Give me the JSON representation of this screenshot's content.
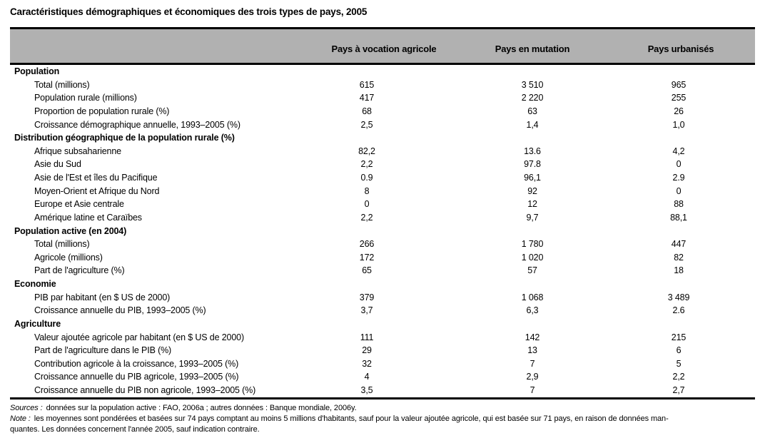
{
  "title": "Caractéristiques démographiques et économiques des trois types de pays, 2005",
  "colors": {
    "header_band": "#b1b1b1",
    "rule": "#000000"
  },
  "table": {
    "columns": [
      "Pays à vocation agricole",
      "Pays en mutation",
      "Pays urbanisés"
    ],
    "rows": [
      {
        "type": "section",
        "label": "Population"
      },
      {
        "type": "data",
        "label": "Total (millions)",
        "values": [
          "615",
          "3 510",
          "965"
        ]
      },
      {
        "type": "data",
        "label": "Population rurale (millions)",
        "values": [
          "417",
          "2 220",
          "255"
        ]
      },
      {
        "type": "data",
        "label": "Proportion de population rurale (%)",
        "values": [
          "68",
          "63",
          "26"
        ]
      },
      {
        "type": "data",
        "label": "Croissance démographique annuelle, 1993–2005 (%)",
        "values": [
          "2,5",
          "1,4",
          "1,0"
        ]
      },
      {
        "type": "section",
        "label": "Distribution géographique de la population rurale (%)"
      },
      {
        "type": "data",
        "label": "Afrique subsaharienne",
        "values": [
          "82,2",
          "13.6",
          "4,2"
        ]
      },
      {
        "type": "data",
        "label": "Asie du Sud",
        "values": [
          "2,2",
          "97.8",
          "0"
        ]
      },
      {
        "type": "data",
        "label": "Asie de l'Est et îles du Pacifique",
        "values": [
          "0.9",
          "96,1",
          "2.9"
        ]
      },
      {
        "type": "data",
        "label": "Moyen-Orient et Afrique du Nord",
        "values": [
          "8",
          "92",
          "0"
        ]
      },
      {
        "type": "data",
        "label": "Europe et Asie centrale",
        "values": [
          "0",
          "12",
          "88"
        ]
      },
      {
        "type": "data",
        "label": "Amérique latine et Caraïbes",
        "values": [
          "2,2",
          "9,7",
          "88,1"
        ]
      },
      {
        "type": "section",
        "label": "Population active (en 2004)"
      },
      {
        "type": "data",
        "label": "Total (millions)",
        "values": [
          "266",
          "1 780",
          "447"
        ]
      },
      {
        "type": "data",
        "label": "Agricole (millions)",
        "values": [
          "172",
          "1 020",
          "82"
        ]
      },
      {
        "type": "data",
        "label": "Part de l'agriculture (%)",
        "values": [
          "65",
          "57",
          "18"
        ]
      },
      {
        "type": "section",
        "label": "Economie"
      },
      {
        "type": "data",
        "label": "PIB par habitant (en $ US de 2000)",
        "values": [
          "379",
          "1 068",
          "3 489"
        ]
      },
      {
        "type": "data",
        "label": "Croissance annuelle du PIB, 1993–2005 (%)",
        "values": [
          "3,7",
          "6,3",
          "2.6"
        ]
      },
      {
        "type": "section",
        "label": "Agriculture"
      },
      {
        "type": "data",
        "label": "Valeur ajoutée agricole par habitant (en $ US de 2000)",
        "values": [
          "111",
          "142",
          "215"
        ]
      },
      {
        "type": "data",
        "label": "Part de l'agriculture dans le PIB (%)",
        "values": [
          "29",
          "13",
          "6"
        ]
      },
      {
        "type": "data",
        "label": "Contribution agricole à la croissance, 1993–2005 (%)",
        "values": [
          "32",
          "7",
          "5"
        ]
      },
      {
        "type": "data",
        "label": "Croissance annuelle du PIB agricole, 1993–2005 (%)",
        "values": [
          "4",
          "2,9",
          "2,2"
        ]
      },
      {
        "type": "data",
        "label": "Croissance annuelle du PIB non agricole, 1993–2005 (%)",
        "values": [
          "3,5",
          "7",
          "2,7"
        ]
      }
    ]
  },
  "footnotes": {
    "sources_label": "Sources :",
    "sources_text": "données sur la population active : FAO, 2006a ; autres données : Banque mondiale, 2006y.",
    "note_label": "Note :",
    "note_line1": "les moyennes sont pondérées et basées sur 74 pays comptant au moins 5 millions d'habitants, sauf pour la valeur ajoutée agricole, qui est basée sur 71 pays, en raison de données man-",
    "note_line2": "quantes. Les données concernent l'année 2005, sauf indication contraire."
  }
}
